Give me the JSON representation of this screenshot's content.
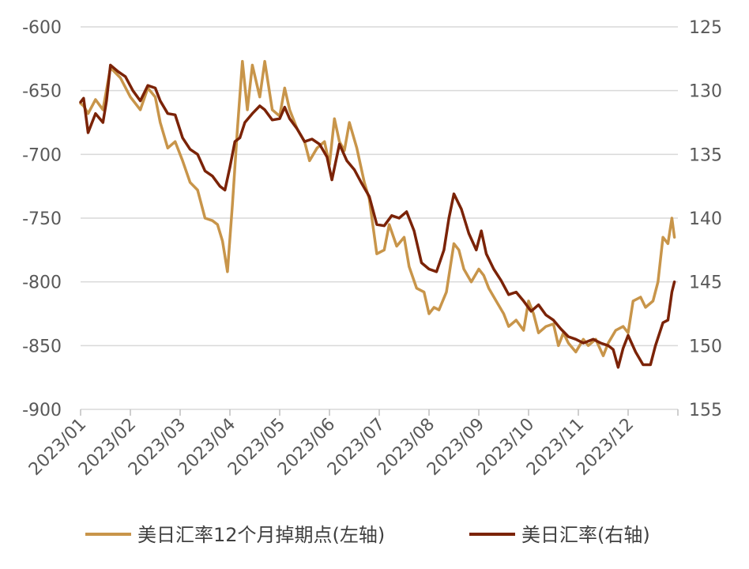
{
  "chart_data": {
    "type": "line",
    "title": "",
    "xlabel": "",
    "ylabel_left": "",
    "ylabel_right": "",
    "x_tick_labels": [
      "2023/01",
      "2023/02",
      "2023/03",
      "2023/04",
      "2023/05",
      "2023/06",
      "2023/07",
      "2023/08",
      "2023/09",
      "2023/10",
      "2023/11",
      "2023/12"
    ],
    "y_left": {
      "range": [
        -900,
        -600
      ],
      "ticks": [
        -600,
        -650,
        -700,
        -750,
        -800,
        -850,
        -900
      ]
    },
    "y_right": {
      "range": [
        155,
        125
      ],
      "ticks": [
        125,
        130,
        135,
        140,
        145,
        150,
        155
      ]
    },
    "grid": "horizontal",
    "legend_position": "bottom",
    "series": [
      {
        "name": "美日汇率12个月掉期点(左轴)",
        "axis": "left",
        "color": "#C8954A",
        "points": [
          [
            0.0,
            -660
          ],
          [
            0.06,
            -662
          ],
          [
            0.15,
            -668
          ],
          [
            0.3,
            -657
          ],
          [
            0.45,
            -665
          ],
          [
            0.6,
            -632
          ],
          [
            0.8,
            -640
          ],
          [
            1.0,
            -655
          ],
          [
            1.2,
            -665
          ],
          [
            1.35,
            -648
          ],
          [
            1.5,
            -655
          ],
          [
            1.6,
            -675
          ],
          [
            1.75,
            -695
          ],
          [
            1.9,
            -690
          ],
          [
            2.05,
            -705
          ],
          [
            2.2,
            -722
          ],
          [
            2.35,
            -728
          ],
          [
            2.5,
            -750
          ],
          [
            2.65,
            -752
          ],
          [
            2.75,
            -755
          ],
          [
            2.85,
            -768
          ],
          [
            2.95,
            -792
          ],
          [
            3.05,
            -740
          ],
          [
            3.15,
            -680
          ],
          [
            3.25,
            -627
          ],
          [
            3.35,
            -665
          ],
          [
            3.45,
            -630
          ],
          [
            3.6,
            -655
          ],
          [
            3.7,
            -627
          ],
          [
            3.85,
            -665
          ],
          [
            4.0,
            -670
          ],
          [
            4.1,
            -648
          ],
          [
            4.2,
            -665
          ],
          [
            4.35,
            -680
          ],
          [
            4.5,
            -690
          ],
          [
            4.6,
            -705
          ],
          [
            4.75,
            -695
          ],
          [
            4.9,
            -690
          ],
          [
            5.0,
            -708
          ],
          [
            5.1,
            -672
          ],
          [
            5.2,
            -690
          ],
          [
            5.3,
            -697
          ],
          [
            5.4,
            -675
          ],
          [
            5.55,
            -695
          ],
          [
            5.7,
            -722
          ],
          [
            5.8,
            -735
          ],
          [
            5.95,
            -778
          ],
          [
            6.1,
            -775
          ],
          [
            6.2,
            -755
          ],
          [
            6.35,
            -772
          ],
          [
            6.5,
            -765
          ],
          [
            6.6,
            -788
          ],
          [
            6.75,
            -805
          ],
          [
            6.9,
            -808
          ],
          [
            7.0,
            -825
          ],
          [
            7.1,
            -820
          ],
          [
            7.2,
            -822
          ],
          [
            7.35,
            -808
          ],
          [
            7.5,
            -770
          ],
          [
            7.6,
            -775
          ],
          [
            7.7,
            -790
          ],
          [
            7.85,
            -800
          ],
          [
            8.0,
            -790
          ],
          [
            8.1,
            -795
          ],
          [
            8.2,
            -805
          ],
          [
            8.35,
            -815
          ],
          [
            8.5,
            -825
          ],
          [
            8.6,
            -835
          ],
          [
            8.75,
            -830
          ],
          [
            8.9,
            -838
          ],
          [
            9.0,
            -815
          ],
          [
            9.1,
            -825
          ],
          [
            9.2,
            -840
          ],
          [
            9.35,
            -835
          ],
          [
            9.5,
            -833
          ],
          [
            9.6,
            -850
          ],
          [
            9.7,
            -840
          ],
          [
            9.8,
            -848
          ],
          [
            9.95,
            -855
          ],
          [
            10.1,
            -845
          ],
          [
            10.2,
            -850
          ],
          [
            10.35,
            -845
          ],
          [
            10.5,
            -858
          ],
          [
            10.6,
            -848
          ],
          [
            10.75,
            -838
          ],
          [
            10.9,
            -835
          ],
          [
            11.0,
            -840
          ],
          [
            11.1,
            -815
          ],
          [
            11.25,
            -812
          ],
          [
            11.35,
            -820
          ],
          [
            11.5,
            -815
          ],
          [
            11.6,
            -800
          ],
          [
            11.7,
            -765
          ],
          [
            11.8,
            -770
          ],
          [
            11.88,
            -750
          ],
          [
            11.93,
            -765
          ]
        ]
      },
      {
        "name": "美日汇率(右轴)",
        "axis": "right",
        "color": "#7B2307",
        "points": [
          [
            0.0,
            130.9
          ],
          [
            0.06,
            130.6
          ],
          [
            0.15,
            133.3
          ],
          [
            0.3,
            131.8
          ],
          [
            0.45,
            132.5
          ],
          [
            0.52,
            130.8
          ],
          [
            0.6,
            128.0
          ],
          [
            0.75,
            128.5
          ],
          [
            0.9,
            128.9
          ],
          [
            1.05,
            130.0
          ],
          [
            1.2,
            130.8
          ],
          [
            1.35,
            129.6
          ],
          [
            1.5,
            129.8
          ],
          [
            1.6,
            130.8
          ],
          [
            1.75,
            131.8
          ],
          [
            1.9,
            131.9
          ],
          [
            2.05,
            133.7
          ],
          [
            2.2,
            134.6
          ],
          [
            2.35,
            135.0
          ],
          [
            2.5,
            136.3
          ],
          [
            2.65,
            136.7
          ],
          [
            2.8,
            137.5
          ],
          [
            2.9,
            137.8
          ],
          [
            3.0,
            136.0
          ],
          [
            3.1,
            134.0
          ],
          [
            3.2,
            133.7
          ],
          [
            3.3,
            132.5
          ],
          [
            3.45,
            131.8
          ],
          [
            3.6,
            131.2
          ],
          [
            3.7,
            131.5
          ],
          [
            3.85,
            132.3
          ],
          [
            4.0,
            132.2
          ],
          [
            4.1,
            131.3
          ],
          [
            4.2,
            132.2
          ],
          [
            4.35,
            133.0
          ],
          [
            4.5,
            134.0
          ],
          [
            4.65,
            133.8
          ],
          [
            4.8,
            134.2
          ],
          [
            4.95,
            135.2
          ],
          [
            5.05,
            137.0
          ],
          [
            5.2,
            134.2
          ],
          [
            5.35,
            135.5
          ],
          [
            5.5,
            136.2
          ],
          [
            5.65,
            137.3
          ],
          [
            5.8,
            138.3
          ],
          [
            5.95,
            140.5
          ],
          [
            6.1,
            140.6
          ],
          [
            6.25,
            139.8
          ],
          [
            6.4,
            140.0
          ],
          [
            6.55,
            139.5
          ],
          [
            6.7,
            141.0
          ],
          [
            6.85,
            143.5
          ],
          [
            7.0,
            144.0
          ],
          [
            7.15,
            144.2
          ],
          [
            7.3,
            142.5
          ],
          [
            7.4,
            140.0
          ],
          [
            7.5,
            138.1
          ],
          [
            7.65,
            139.3
          ],
          [
            7.8,
            141.2
          ],
          [
            7.95,
            142.5
          ],
          [
            8.05,
            141.0
          ],
          [
            8.15,
            142.8
          ],
          [
            8.3,
            144.0
          ],
          [
            8.45,
            144.9
          ],
          [
            8.6,
            146.0
          ],
          [
            8.75,
            145.8
          ],
          [
            8.9,
            146.5
          ],
          [
            9.05,
            147.3
          ],
          [
            9.2,
            146.8
          ],
          [
            9.35,
            147.6
          ],
          [
            9.5,
            148.0
          ],
          [
            9.65,
            148.7
          ],
          [
            9.8,
            149.3
          ],
          [
            9.95,
            149.5
          ],
          [
            10.1,
            149.8
          ],
          [
            10.3,
            149.5
          ],
          [
            10.45,
            149.8
          ],
          [
            10.6,
            150.0
          ],
          [
            10.7,
            150.3
          ],
          [
            10.8,
            151.7
          ],
          [
            10.9,
            150.2
          ],
          [
            11.0,
            149.2
          ],
          [
            11.15,
            150.5
          ],
          [
            11.3,
            151.5
          ],
          [
            11.45,
            151.5
          ],
          [
            11.55,
            150.0
          ],
          [
            11.7,
            148.2
          ],
          [
            11.8,
            148.0
          ],
          [
            11.88,
            145.8
          ],
          [
            11.93,
            145.0
          ]
        ]
      }
    ]
  }
}
